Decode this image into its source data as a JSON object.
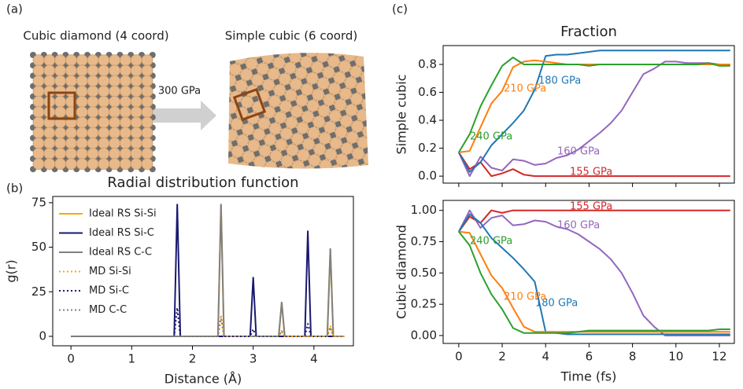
{
  "panel_labels": [
    "(a)",
    "(b)",
    "(c)"
  ],
  "structures": {
    "left_title": "Cubic diamond (4 coord)",
    "right_title": "Simple cubic (6 coord)",
    "arrow_label": "300 GPa"
  },
  "chart_data": [
    {
      "type": "line",
      "title": "Radial distribution function",
      "xlabel": "Distance (Å)",
      "ylabel": "g(r)",
      "x": [
        0,
        1.7,
        1.75,
        1.8,
        2.42,
        2.47,
        2.52,
        2.95,
        3.0,
        3.05,
        3.42,
        3.47,
        3.52,
        3.85,
        3.9,
        3.95,
        4.22,
        4.27,
        4.32,
        4.5
      ],
      "series": [
        {
          "name": "Ideal RS Si-Si",
          "color": "#ffa500",
          "linestyle": "solid",
          "values": [
            0,
            0,
            0,
            0,
            0,
            74,
            0,
            0,
            0,
            0,
            0,
            19,
            0,
            0,
            0,
            0,
            0,
            49,
            0,
            0
          ]
        },
        {
          "name": "Ideal RS Si-C",
          "color": "#191970",
          "linestyle": "solid",
          "values": [
            0,
            0,
            74,
            0,
            0,
            0,
            0,
            0,
            33,
            0,
            0,
            0,
            0,
            0,
            59,
            0,
            0,
            0,
            0,
            0
          ]
        },
        {
          "name": "Ideal RS C-C",
          "color": "#808080",
          "linestyle": "solid",
          "values": [
            0,
            0,
            0,
            0,
            0,
            74,
            0,
            0,
            0,
            0,
            0,
            19,
            0,
            0,
            0,
            0,
            0,
            49,
            0,
            0
          ]
        },
        {
          "name": "MD Si-Si",
          "color": "#ffa500",
          "linestyle": "dotted",
          "values": [
            0,
            0,
            0,
            0,
            0,
            12,
            0,
            0,
            0,
            0,
            0,
            3,
            0,
            0,
            0,
            0,
            0,
            6,
            0,
            0
          ]
        },
        {
          "name": "MD Si-C",
          "color": "#191970",
          "linestyle": "dotted",
          "values": [
            0,
            0,
            16,
            0,
            0,
            0,
            0,
            0,
            4,
            0,
            0,
            0,
            0,
            0,
            7,
            0,
            0,
            0,
            0,
            0
          ]
        },
        {
          "name": "MD C-C",
          "color": "#808080",
          "linestyle": "dotted",
          "values": [
            0,
            0,
            0,
            0,
            0,
            10,
            0,
            0,
            0,
            0,
            0,
            3,
            0,
            0,
            0,
            0,
            0,
            5,
            0,
            0
          ]
        }
      ],
      "xlim": [
        -0.3,
        4.65
      ],
      "ylim": [
        -5.3,
        78.5
      ],
      "xticks": [
        0,
        1,
        2,
        3,
        4
      ],
      "yticks": [
        0,
        25,
        50,
        75
      ],
      "legend": "upper left"
    },
    {
      "type": "line",
      "title": "Fraction",
      "ylabel": "Simple cubic",
      "x": [
        0,
        0.5,
        1,
        1.5,
        2,
        2.5,
        3,
        3.5,
        4,
        4.5,
        5,
        5.5,
        6,
        6.5,
        7,
        7.5,
        8,
        8.5,
        9,
        9.5,
        10,
        10.5,
        11,
        11.5,
        12,
        12.5
      ],
      "series": [
        {
          "name": "155 GPa",
          "color": "#d62728",
          "values": [
            0.17,
            0.05,
            0.1,
            0.0,
            0.02,
            0.05,
            0.01,
            0,
            0,
            0,
            0,
            0,
            0,
            0,
            0,
            0,
            0,
            0,
            0,
            0,
            0,
            0,
            0,
            0,
            0,
            0
          ]
        },
        {
          "name": "160 GPa",
          "color": "#9467bd",
          "values": [
            0.17,
            0.0,
            0.14,
            0.06,
            0.04,
            0.12,
            0.11,
            0.08,
            0.09,
            0.13,
            0.15,
            0.19,
            0.25,
            0.31,
            0.38,
            0.47,
            0.6,
            0.73,
            0.77,
            0.82,
            0.82,
            0.81,
            0.81,
            0.81,
            0.8,
            0.8
          ]
        },
        {
          "name": "180 GPa",
          "color": "#1f77b4",
          "values": [
            0.17,
            0.03,
            0.1,
            0.22,
            0.3,
            0.38,
            0.47,
            0.62,
            0.86,
            0.87,
            0.87,
            0.88,
            0.89,
            0.9,
            0.9,
            0.9,
            0.9,
            0.9,
            0.9,
            0.9,
            0.9,
            0.9,
            0.9,
            0.9,
            0.9,
            0.9
          ]
        },
        {
          "name": "210 GPa",
          "color": "#ff7f0e",
          "values": [
            0.17,
            0.18,
            0.35,
            0.52,
            0.61,
            0.78,
            0.82,
            0.83,
            0.82,
            0.81,
            0.8,
            0.8,
            0.8,
            0.8,
            0.8,
            0.8,
            0.8,
            0.8,
            0.8,
            0.8,
            0.8,
            0.8,
            0.8,
            0.8,
            0.8,
            0.8
          ]
        },
        {
          "name": "240 GPa",
          "color": "#2ca02c",
          "values": [
            0.17,
            0.3,
            0.5,
            0.65,
            0.79,
            0.85,
            0.8,
            0.8,
            0.8,
            0.8,
            0.8,
            0.8,
            0.79,
            0.8,
            0.8,
            0.8,
            0.8,
            0.8,
            0.8,
            0.8,
            0.8,
            0.8,
            0.8,
            0.81,
            0.79,
            0.79
          ]
        }
      ],
      "xlim": [
        -0.72,
        12.69
      ],
      "ylim": [
        -0.05,
        0.935
      ],
      "xticks": [
        0,
        2,
        4,
        6,
        8,
        10,
        12
      ],
      "show_xtick_labels": false,
      "yticks": [
        {
          "value": 0,
          "label": "0.0"
        },
        0.2,
        0.4,
        0.6,
        0.8
      ]
    },
    {
      "type": "line",
      "ylabel": "Cubic diamond",
      "xlabel": "Time (fs)",
      "x": [
        0,
        0.5,
        1,
        1.5,
        2,
        2.5,
        3,
        3.5,
        4,
        4.5,
        5,
        5.5,
        6,
        6.5,
        7,
        7.5,
        8,
        8.5,
        9,
        9.5,
        10,
        10.5,
        11,
        11.5,
        12,
        12.5
      ],
      "series": [
        {
          "name": "155 GPa",
          "color": "#d62728",
          "values": [
            0.83,
            0.95,
            0.9,
            1.0,
            0.98,
            1.0,
            1.0,
            1.0,
            1.0,
            1.0,
            1.0,
            1.0,
            1.0,
            1.0,
            1.0,
            1.0,
            1.0,
            1.0,
            1.0,
            1.0,
            1.0,
            1.0,
            1.0,
            1.0,
            1.0,
            1.0
          ]
        },
        {
          "name": "160 GPa",
          "color": "#9467bd",
          "values": [
            0.83,
            1.0,
            0.86,
            0.94,
            0.96,
            0.88,
            0.89,
            0.92,
            0.91,
            0.87,
            0.85,
            0.81,
            0.75,
            0.69,
            0.61,
            0.5,
            0.34,
            0.16,
            0.07,
            0.0,
            0,
            0,
            0,
            0,
            0,
            0
          ]
        },
        {
          "name": "180 GPa",
          "color": "#1f77b4",
          "values": [
            0.83,
            0.97,
            0.9,
            0.78,
            0.7,
            0.62,
            0.53,
            0.43,
            0.03,
            0.02,
            0.01,
            0.01,
            0.01,
            0.01,
            0.01,
            0.01,
            0.01,
            0.01,
            0.01,
            0.01,
            0.01,
            0.01,
            0.01,
            0.01,
            0.01,
            0.01
          ]
        },
        {
          "name": "210 GPa",
          "color": "#ff7f0e",
          "values": [
            0.83,
            0.82,
            0.65,
            0.48,
            0.38,
            0.22,
            0.07,
            0.03,
            0.03,
            0.03,
            0.03,
            0.03,
            0.03,
            0.03,
            0.03,
            0.03,
            0.03,
            0.03,
            0.03,
            0.03,
            0.03,
            0.03,
            0.03,
            0.03,
            0.03,
            0.03
          ]
        },
        {
          "name": "240 GPa",
          "color": "#2ca02c",
          "values": [
            0.83,
            0.72,
            0.5,
            0.33,
            0.21,
            0.06,
            0.02,
            0.02,
            0.02,
            0.02,
            0.02,
            0.03,
            0.04,
            0.04,
            0.04,
            0.04,
            0.04,
            0.04,
            0.04,
            0.04,
            0.04,
            0.04,
            0.04,
            0.04,
            0.05,
            0.05
          ]
        }
      ],
      "xlim": [
        -0.72,
        12.69
      ],
      "ylim": [
        -0.063,
        1.08
      ],
      "xticks": [
        0,
        2,
        4,
        6,
        8,
        10,
        12
      ],
      "yticks": [
        {
          "value": 0,
          "label": "0.00"
        },
        0.25,
        {
          "value": 0.5,
          "label": "0.50"
        },
        0.75,
        {
          "value": 1,
          "label": "1.00"
        }
      ]
    }
  ]
}
